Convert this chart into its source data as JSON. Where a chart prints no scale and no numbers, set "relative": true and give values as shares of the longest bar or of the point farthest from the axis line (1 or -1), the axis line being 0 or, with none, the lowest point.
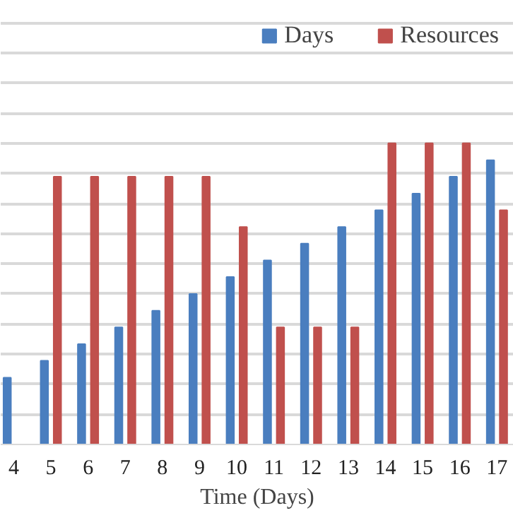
{
  "chart_data": {
    "type": "bar",
    "xlabel": "Time (Days)",
    "relative": true,
    "grid": "y",
    "legend": "top",
    "categories": [
      "4",
      "5",
      "6",
      "7",
      "8",
      "9",
      "10",
      "11",
      "12",
      "13",
      "14",
      "15",
      "16",
      "17"
    ],
    "series": [
      {
        "name": "Days",
        "color": "#4a7ebf",
        "values": [
          0.222,
          0.278,
          0.333,
          0.389,
          0.444,
          0.5,
          0.556,
          0.611,
          0.667,
          0.722,
          0.778,
          0.833,
          0.889,
          0.944
        ]
      },
      {
        "name": "Resources",
        "color": "#c0504d",
        "values": [
          null,
          0.889,
          0.889,
          0.889,
          0.889,
          0.889,
          0.722,
          0.389,
          0.389,
          0.389,
          1,
          1,
          1,
          0.778
        ]
      }
    ]
  }
}
